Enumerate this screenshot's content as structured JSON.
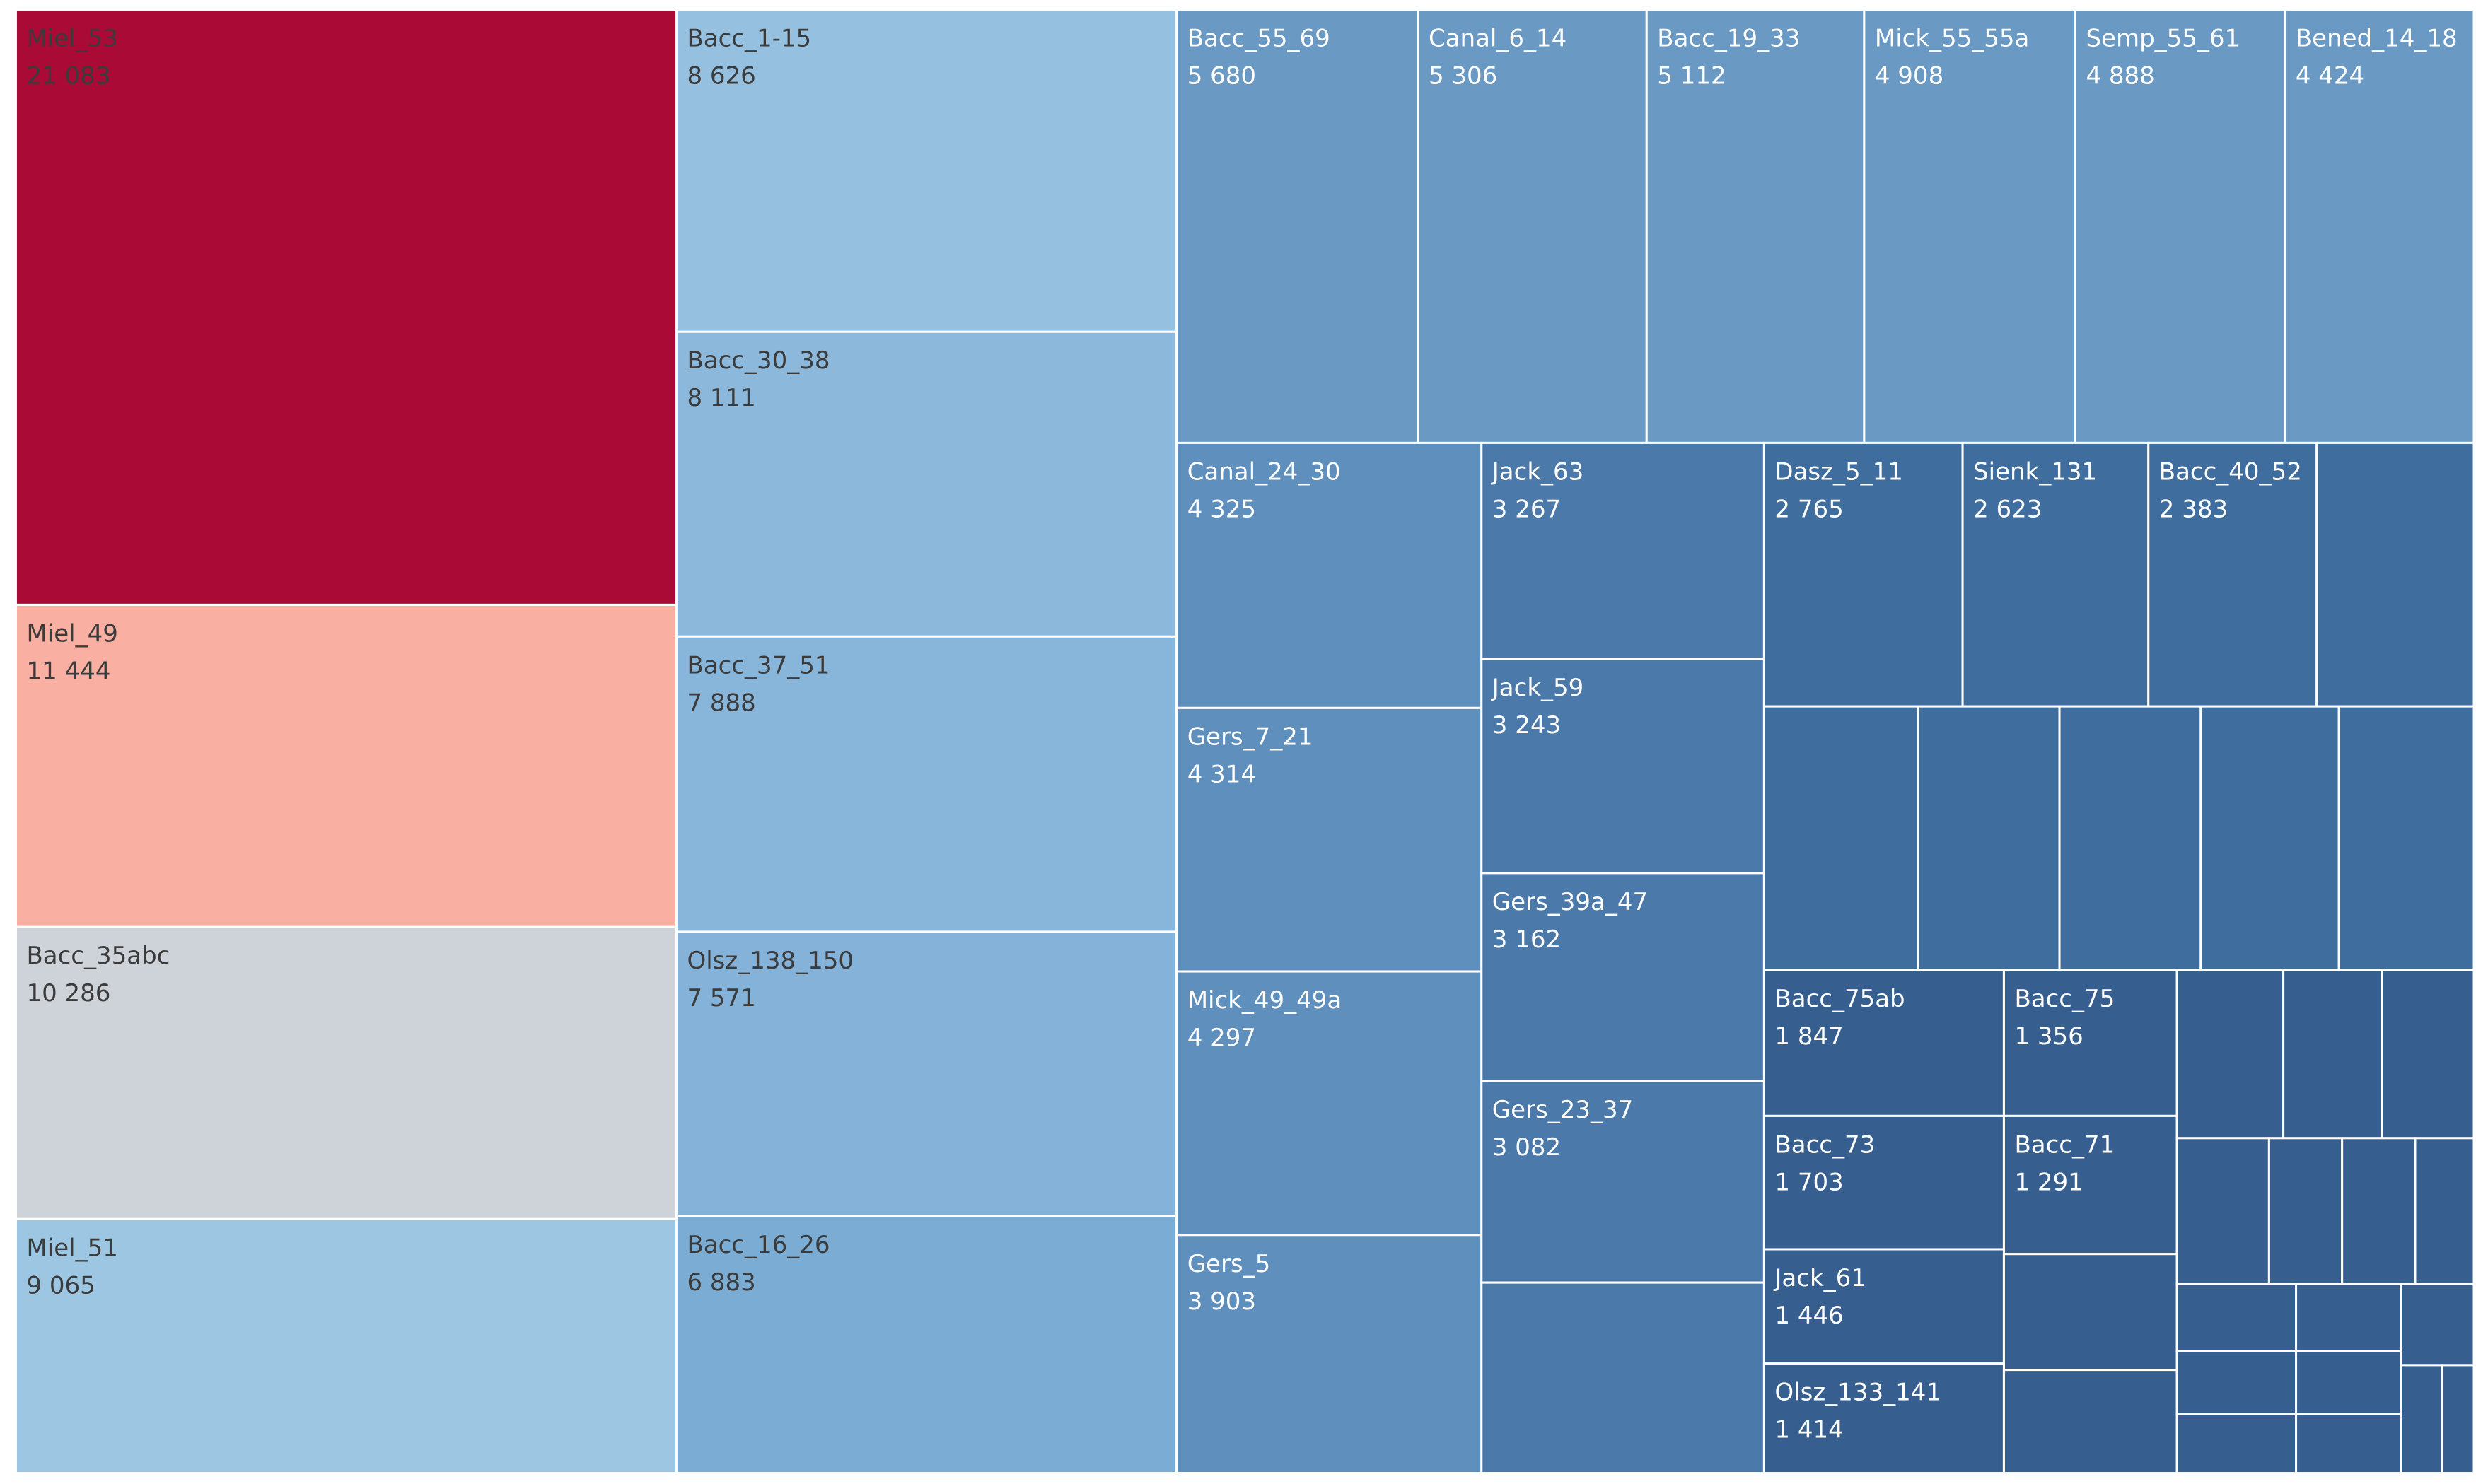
{
  "chart_data": {
    "type": "treemap",
    "title": "",
    "colors": {
      "miel_53": "#A90A36",
      "miel_49": "#F9AFA1",
      "bacc_35abc": "#CED3D9",
      "miel_51": "#9CC6E1",
      "bacc_1_15": "#95C0E0",
      "bacc_30_38": "#8CB9DB",
      "bacc_37_51": "#88B5DA",
      "olsz_138_150": "#84B2D8",
      "bacc_16_26": "#7BACD3",
      "blue_mid": "#6A9AC4",
      "blue_mid2": "#5F8FBD",
      "blue_deep": "#4A79AA",
      "blue_deeper": "#3F6D9E",
      "blue_dark": "#365F8F",
      "label_dark": "#3B3B3B",
      "label_light": "#FFFFFF"
    },
    "cells": [
      {
        "name": "Miel_53",
        "value": "21 083",
        "color": "miel_53",
        "labelColor": "label_dark",
        "labeled": true
      },
      {
        "name": "Miel_49",
        "value": "11 444",
        "color": "miel_49",
        "labelColor": "label_dark",
        "labeled": true
      },
      {
        "name": "Bacc_35abc",
        "value": "10 286",
        "color": "bacc_35abc",
        "labelColor": "label_dark",
        "labeled": true
      },
      {
        "name": "Miel_51",
        "value": "9 065",
        "color": "miel_51",
        "labelColor": "label_dark",
        "labeled": true
      },
      {
        "name": "Bacc_1-15",
        "value": "8 626",
        "color": "bacc_1_15",
        "labelColor": "label_dark",
        "labeled": true
      },
      {
        "name": "Bacc_30_38",
        "value": "8 111",
        "color": "bacc_30_38",
        "labelColor": "label_dark",
        "labeled": true
      },
      {
        "name": "Bacc_37_51",
        "value": "7 888",
        "color": "bacc_37_51",
        "labelColor": "label_dark",
        "labeled": true
      },
      {
        "name": "Olsz_138_150",
        "value": "7 571",
        "color": "olsz_138_150",
        "labelColor": "label_dark",
        "labeled": true
      },
      {
        "name": "Bacc_16_26",
        "value": "6 883",
        "color": "bacc_16_26",
        "labelColor": "label_dark",
        "labeled": true
      },
      {
        "name": "Bacc_55_69",
        "value": "5 680",
        "color": "blue_mid",
        "labelColor": "label_light",
        "labeled": true
      },
      {
        "name": "Canal_6_14",
        "value": "5 306",
        "color": "blue_mid",
        "labelColor": "label_light",
        "labeled": true
      },
      {
        "name": "Bacc_19_33",
        "value": "5 112",
        "color": "blue_mid",
        "labelColor": "label_light",
        "labeled": true
      },
      {
        "name": "Mick_55_55a",
        "value": "4 908",
        "color": "blue_mid",
        "labelColor": "label_light",
        "labeled": true
      },
      {
        "name": "Semp_55_61",
        "value": "4 888",
        "color": "blue_mid",
        "labelColor": "label_light",
        "labeled": true
      },
      {
        "name": "Bened_14_18",
        "value": "4 424",
        "color": "blue_mid",
        "labelColor": "label_light",
        "labeled": true
      },
      {
        "name": "Canal_24_30",
        "value": "4 325",
        "color": "blue_mid2",
        "labelColor": "label_light",
        "labeled": true
      },
      {
        "name": "Gers_7_21",
        "value": "4 314",
        "color": "blue_mid2",
        "labelColor": "label_light",
        "labeled": true
      },
      {
        "name": "Mick_49_49a",
        "value": "4 297",
        "color": "blue_mid2",
        "labelColor": "label_light",
        "labeled": true
      },
      {
        "name": "Gers_5",
        "value": "3 903",
        "color": "blue_mid2",
        "labelColor": "label_light",
        "labeled": true
      },
      {
        "name": "Jack_63",
        "value": "3 267",
        "color": "blue_deep",
        "labelColor": "label_light",
        "labeled": true
      },
      {
        "name": "Jack_59",
        "value": "3 243",
        "color": "blue_deep",
        "labelColor": "label_light",
        "labeled": true
      },
      {
        "name": "Gers_39a_47",
        "value": "3 162",
        "color": "blue_deep",
        "labelColor": "label_light",
        "labeled": true
      },
      {
        "name": "Gers_23_37",
        "value": "3 082",
        "color": "blue_deep",
        "labelColor": "label_light",
        "labeled": true
      },
      {
        "name": "",
        "value": "",
        "color": "blue_deep",
        "labelColor": "label_light",
        "labeled": false
      },
      {
        "name": "Dasz_5_11",
        "value": "2 765",
        "color": "blue_deeper",
        "labelColor": "label_light",
        "labeled": true
      },
      {
        "name": "Sienk_131",
        "value": "2 623",
        "color": "blue_deeper",
        "labelColor": "label_light",
        "labeled": true
      },
      {
        "name": "Bacc_40_52",
        "value": "2 383",
        "color": "blue_deeper",
        "labelColor": "label_light",
        "labeled": true
      },
      {
        "name": "",
        "value": "",
        "color": "blue_deeper",
        "labelColor": "label_light",
        "labeled": false
      },
      {
        "name": "",
        "value": "",
        "color": "blue_deeper",
        "labelColor": "label_light",
        "labeled": false
      },
      {
        "name": "",
        "value": "",
        "color": "blue_deeper",
        "labelColor": "label_light",
        "labeled": false
      },
      {
        "name": "",
        "value": "",
        "color": "blue_deeper",
        "labelColor": "label_light",
        "labeled": false
      },
      {
        "name": "",
        "value": "",
        "color": "blue_deeper",
        "labelColor": "label_light",
        "labeled": false
      },
      {
        "name": "",
        "value": "",
        "color": "blue_deeper",
        "labelColor": "label_light",
        "labeled": false
      },
      {
        "name": "Bacc_75ab",
        "value": "1 847",
        "color": "blue_dark",
        "labelColor": "label_light",
        "labeled": true
      },
      {
        "name": "Bacc_75",
        "value": "1 356",
        "color": "blue_dark",
        "labelColor": "label_light",
        "labeled": true
      },
      {
        "name": "Bacc_73",
        "value": "1 703",
        "color": "blue_dark",
        "labelColor": "label_light",
        "labeled": true
      },
      {
        "name": "Bacc_71",
        "value": "1 291",
        "color": "blue_dark",
        "labelColor": "label_light",
        "labeled": true
      },
      {
        "name": "Jack_61",
        "value": "1 446",
        "color": "blue_dark",
        "labelColor": "label_light",
        "labeled": true
      },
      {
        "name": "",
        "value": "",
        "color": "blue_dark",
        "labelColor": "label_light",
        "labeled": false
      },
      {
        "name": "Olsz_133_141",
        "value": "1 414",
        "color": "blue_dark",
        "labelColor": "label_light",
        "labeled": true
      },
      {
        "name": "",
        "value": "",
        "color": "blue_dark",
        "labelColor": "label_light",
        "labeled": false
      },
      {
        "name": "",
        "value": "",
        "color": "blue_dark",
        "labelColor": "label_light",
        "labeled": false
      },
      {
        "name": "",
        "value": "",
        "color": "blue_dark",
        "labelColor": "label_light",
        "labeled": false
      },
      {
        "name": "",
        "value": "",
        "color": "blue_dark",
        "labelColor": "label_light",
        "labeled": false
      },
      {
        "name": "",
        "value": "",
        "color": "blue_dark",
        "labelColor": "label_light",
        "labeled": false
      },
      {
        "name": "",
        "value": "",
        "color": "blue_dark",
        "labelColor": "label_light",
        "labeled": false
      },
      {
        "name": "",
        "value": "",
        "color": "blue_dark",
        "labelColor": "label_light",
        "labeled": false
      },
      {
        "name": "",
        "value": "",
        "color": "blue_dark",
        "labelColor": "label_light",
        "labeled": false
      },
      {
        "name": "",
        "value": "",
        "color": "blue_dark",
        "labelColor": "label_light",
        "labeled": false
      },
      {
        "name": "",
        "value": "",
        "color": "blue_dark",
        "labelColor": "label_light",
        "labeled": false
      },
      {
        "name": "",
        "value": "",
        "color": "blue_dark",
        "labelColor": "label_light",
        "labeled": false
      },
      {
        "name": "",
        "value": "",
        "color": "blue_dark",
        "labelColor": "label_light",
        "labeled": false
      },
      {
        "name": "",
        "value": "",
        "color": "blue_dark",
        "labelColor": "label_light",
        "labeled": false
      },
      {
        "name": "",
        "value": "",
        "color": "blue_dark",
        "labelColor": "label_light",
        "labeled": false
      },
      {
        "name": "",
        "value": "",
        "color": "blue_dark",
        "labelColor": "label_light",
        "labeled": false
      },
      {
        "name": "",
        "value": "",
        "color": "blue_dark",
        "labelColor": "label_light",
        "labeled": false
      },
      {
        "name": "",
        "value": "",
        "color": "blue_dark",
        "labelColor": "label_light",
        "labeled": false
      }
    ]
  }
}
